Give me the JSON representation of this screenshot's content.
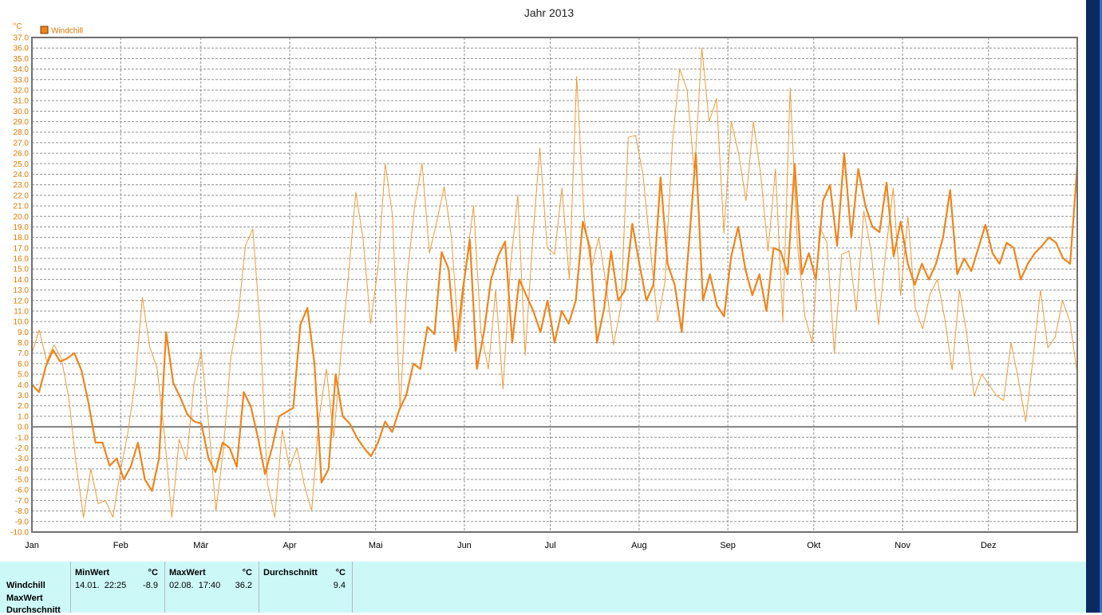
{
  "colors": {
    "series": "#f0841a",
    "series_thin": "#f29a36",
    "grid": "#909090",
    "zero": "#808080",
    "axis_text": "#e07800",
    "stats_bg": "#ccf8f8"
  },
  "chart_data": {
    "type": "line",
    "title": "Jahr 2013",
    "ylabel": "°C",
    "ylim": [
      -10,
      37
    ],
    "yticks": [
      "37.0",
      "36.0",
      "35.0",
      "34.0",
      "33.0",
      "32.0",
      "31.0",
      "30.0",
      "29.0",
      "28.0",
      "27.0",
      "26.0",
      "25.0",
      "24.0",
      "23.0",
      "22.0",
      "21.0",
      "20.0",
      "19.0",
      "18.0",
      "17.0",
      "16.0",
      "15.0",
      "14.0",
      "13.0",
      "12.0",
      "11.0",
      "10.0",
      "9.0",
      "8.0",
      "7.0",
      "6.0",
      "5.0",
      "4.0",
      "3.0",
      "2.0",
      "1.0",
      "0.0",
      "-1.0",
      "-2.0",
      "-3.0",
      "-4.0",
      "-5.0",
      "-6.0",
      "-7.0",
      "-8.0",
      "-9.0",
      "-10.0"
    ],
    "months": [
      "Jan",
      "Feb",
      "Mär",
      "Apr",
      "Mai",
      "Jun",
      "Jul",
      "Aug",
      "Sep",
      "Okt",
      "Nov",
      "Dez"
    ],
    "legend": {
      "label": "Windchill",
      "position": "top-left"
    },
    "grid": true,
    "series": [
      {
        "role": "max",
        "values": [
          7.0,
          9.2,
          6.2,
          7.8,
          6.5,
          2.8,
          -3.5,
          -8.6,
          -4.0,
          -7.3,
          -7.0,
          -8.6,
          -4.3,
          -0.7,
          4.2,
          12.3,
          7.6,
          5.6,
          -0.8,
          -8.6,
          -1.2,
          -3.2,
          4.0,
          7.2,
          0.3,
          -8.0,
          -2.2,
          6.5,
          10.4,
          17.2,
          18.8,
          9.5,
          -5.4,
          -8.6,
          -0.3,
          -3.9,
          -2.0,
          -5.5,
          -8.0,
          0.8,
          5.5,
          -1.0,
          7.2,
          14.4,
          22.3,
          17.8,
          9.8,
          15.0,
          25.0,
          20.0,
          1.6,
          14.5,
          21.0,
          25.0,
          16.5,
          19.5,
          22.8,
          18.0,
          8.0,
          15.6,
          21.0,
          9.0,
          5.5,
          13.0,
          3.6,
          15.2,
          22.0,
          6.8,
          17.5,
          26.5,
          17.0,
          16.4,
          22.7,
          14.0,
          33.3,
          20.0,
          15.0,
          18.0,
          13.5,
          7.8,
          11.4,
          27.5,
          27.7,
          24.0,
          17.0,
          10.0,
          13.8,
          27.0,
          34.0,
          32.0,
          24.0,
          36.0,
          29.0,
          31.2,
          18.4,
          29.0,
          26.0,
          21.5,
          29.0,
          24.0,
          16.7,
          24.5,
          10.0,
          32.2,
          17.2,
          10.5,
          8.0,
          19.0,
          17.5,
          7.0,
          16.4,
          16.7,
          11.0,
          20.5,
          16.7,
          9.7,
          16.7,
          22.7,
          12.5,
          20.0,
          11.3,
          9.3,
          12.6,
          14.0,
          10.3,
          5.4,
          13.0,
          8.8,
          2.9,
          5.0,
          4.0,
          3.0,
          2.5,
          8.0,
          4.5,
          0.5,
          6.5,
          13.0,
          7.5,
          8.5,
          12.0,
          10.0,
          5.0
        ]
      },
      {
        "role": "avg",
        "values": [
          4.0,
          3.3,
          5.8,
          7.3,
          6.2,
          6.5,
          7.0,
          5.4,
          2.3,
          -1.5,
          -1.5,
          -3.7,
          -3.0,
          -5.0,
          -3.8,
          -1.5,
          -5.0,
          -6.1,
          -3.0,
          9.0,
          4.2,
          2.8,
          1.2,
          0.5,
          0.3,
          -3.0,
          -4.3,
          -1.5,
          -2.0,
          -3.8,
          3.3,
          1.9,
          -1.0,
          -4.5,
          -2.0,
          1.0,
          1.4,
          1.8,
          9.7,
          11.3,
          6.0,
          -5.3,
          -4.0,
          5.0,
          1.0,
          0.3,
          -1.0,
          -2.0,
          -2.8,
          -1.5,
          0.5,
          -0.5,
          1.6,
          3.0,
          6.0,
          5.5,
          9.5,
          8.8,
          16.6,
          15.0,
          7.2,
          13.0,
          17.8,
          5.5,
          9.0,
          14.0,
          16.2,
          17.6,
          8.0,
          14.0,
          12.5,
          11.0,
          9.0,
          12.0,
          8.0,
          11.0,
          9.8,
          12.0,
          19.5,
          17.0,
          8.0,
          11.2,
          16.7,
          12.0,
          13.0,
          19.3,
          15.5,
          12.0,
          13.5,
          23.7,
          15.5,
          13.5,
          9.0,
          17.2,
          26.0,
          12.0,
          14.5,
          11.5,
          10.5,
          16.2,
          19.0,
          15.0,
          12.5,
          14.5,
          11.0,
          17.0,
          16.7,
          14.5,
          25.0,
          14.5,
          16.5,
          14.0,
          21.5,
          23.0,
          17.2,
          26.0,
          18.0,
          24.5,
          21.0,
          19.0,
          18.5,
          23.2,
          16.2,
          19.5,
          15.5,
          13.5,
          15.5,
          14.0,
          15.5,
          18.0,
          22.5,
          14.5,
          16.0,
          14.8,
          17.0,
          19.2,
          16.5,
          15.5,
          17.5,
          17.0,
          14.0,
          15.5,
          16.5,
          17.2,
          18.0,
          17.5,
          16.0,
          15.5,
          24.8
        ]
      }
    ]
  },
  "stats": {
    "row_labels": [
      "Windchill",
      "MaxWert",
      "Durchschnitt"
    ],
    "min": {
      "header": "MinWert",
      "unit": "°C",
      "time": "14.01.  22:25",
      "value": "-8.9"
    },
    "max": {
      "header": "MaxWert",
      "unit": "°C",
      "time": "02.08.  17:40",
      "value": "36.2"
    },
    "avg": {
      "header": "Durchschnitt",
      "unit": "°C",
      "value": "9.4"
    }
  }
}
